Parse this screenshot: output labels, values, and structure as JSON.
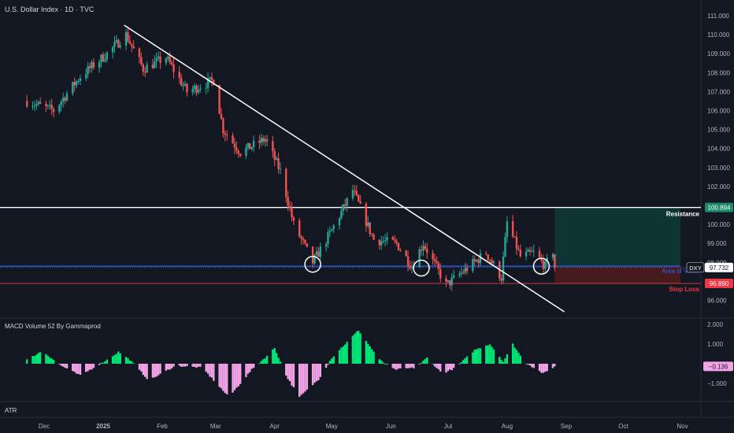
{
  "header": {
    "title": "U.S. Dollar Index · 1D · TVC"
  },
  "macd_panel": {
    "title": "MACD Volume 52 By Gammaprod"
  },
  "atr_panel": {
    "title": "ATR"
  },
  "colors": {
    "background": "#131722",
    "bull": "#26a69a",
    "bear": "#ef5350",
    "hist_up": "#00e676",
    "hist_down": "#f2a2e6",
    "area_of_value": "#2962ff",
    "stop_loss": "#f23645",
    "resistance": "#ffffff",
    "target_zone": "#0e3b34",
    "stop_zone": "#4a1a1f"
  },
  "chart_data": [
    {
      "type": "candlestick",
      "title": "U.S. Dollar Index · 1D · TVC",
      "x_tick_labels": [
        "Dec",
        "2025",
        "Feb",
        "Mar",
        "Apr",
        "May",
        "Jun",
        "Jul",
        "Aug",
        "Sep",
        "Oct",
        "Nov"
      ],
      "y_ticks": [
        "111.000",
        "110.000",
        "109.000",
        "108.000",
        "107.000",
        "106.000",
        "105.000",
        "104.000",
        "103.000",
        "102.000",
        "101.000",
        "100.000",
        "99.000",
        "98.000",
        "97.000",
        "96.000"
      ],
      "ylim": [
        95.2,
        111.3
      ],
      "grid": false,
      "anchor_points": [
        {
          "date": "2024-11-22",
          "value": 106.5
        },
        {
          "date": "2024-12-06",
          "value": 106.0
        },
        {
          "date": "2024-12-20",
          "value": 107.8
        },
        {
          "date": "2025-01-03",
          "value": 109.0
        },
        {
          "date": "2025-01-13",
          "value": 110.0
        },
        {
          "date": "2025-01-22",
          "value": 108.2
        },
        {
          "date": "2025-02-03",
          "value": 108.8
        },
        {
          "date": "2025-02-14",
          "value": 107.0
        },
        {
          "date": "2025-02-28",
          "value": 107.6
        },
        {
          "date": "2025-03-05",
          "value": 105.0
        },
        {
          "date": "2025-03-14",
          "value": 103.8
        },
        {
          "date": "2025-03-27",
          "value": 104.5
        },
        {
          "date": "2025-04-04",
          "value": 102.8
        },
        {
          "date": "2025-04-11",
          "value": 100.0
        },
        {
          "date": "2025-04-21",
          "value": 98.0
        },
        {
          "date": "2025-04-30",
          "value": 99.5
        },
        {
          "date": "2025-05-12",
          "value": 101.8
        },
        {
          "date": "2025-05-23",
          "value": 99.2
        },
        {
          "date": "2025-06-04",
          "value": 99.0
        },
        {
          "date": "2025-06-12",
          "value": 97.8
        },
        {
          "date": "2025-06-18",
          "value": 99.0
        },
        {
          "date": "2025-06-30",
          "value": 96.8
        },
        {
          "date": "2025-07-10",
          "value": 97.6
        },
        {
          "date": "2025-07-21",
          "value": 98.5
        },
        {
          "date": "2025-07-29",
          "value": 97.2
        },
        {
          "date": "2025-08-01",
          "value": 100.1
        },
        {
          "date": "2025-08-08",
          "value": 98.3
        },
        {
          "date": "2025-08-15",
          "value": 98.5
        },
        {
          "date": "2025-08-21",
          "value": 97.8
        },
        {
          "date": "2025-08-25",
          "value": 98.6
        },
        {
          "date": "2025-08-26",
          "value": 97.73
        }
      ],
      "price_levels": [
        {
          "name": "Resistance",
          "value": 100.894,
          "label": "100.894"
        },
        {
          "name": "Area of Value",
          "value": 97.8,
          "label": ""
        },
        {
          "name": "Stop Loss",
          "value": 96.89,
          "label": "96.890"
        }
      ],
      "current_price": {
        "symbol": "DXY",
        "value": 97.732,
        "label": "97.732"
      },
      "trendline": {
        "start": {
          "date": "2025-01-12",
          "value": 110.5
        },
        "end": {
          "date": "2025-08-31",
          "value": 95.4
        }
      },
      "touch_circles": [
        {
          "date": "2025-04-21",
          "value": 97.9
        },
        {
          "date": "2025-06-17",
          "value": 97.7
        },
        {
          "date": "2025-08-19",
          "value": 97.8
        }
      ],
      "position_box": {
        "start_date": "2025-08-26",
        "end_date": "2025-10-31",
        "target": 100.894,
        "entry": 97.8,
        "stop": 96.89
      }
    },
    {
      "type": "bar",
      "title": "MACD Volume 52 By Gammaprod",
      "y_ticks": [
        "2.000",
        "1.000",
        "−1.000"
      ],
      "ylim": [
        -2.1,
        2.1
      ],
      "current_value": -0.136,
      "current_label": "−0.136",
      "hist_anchors": [
        {
          "date": "2024-11-22",
          "value": 0.2
        },
        {
          "date": "2024-11-30",
          "value": 0.65
        },
        {
          "date": "2024-12-10",
          "value": -0.1
        },
        {
          "date": "2024-12-20",
          "value": -0.6
        },
        {
          "date": "2025-01-03",
          "value": 0.2
        },
        {
          "date": "2025-01-09",
          "value": 0.6
        },
        {
          "date": "2025-01-15",
          "value": 0.2
        },
        {
          "date": "2025-01-25",
          "value": -0.85
        },
        {
          "date": "2025-02-08",
          "value": -0.1
        },
        {
          "date": "2025-02-22",
          "value": -0.2
        },
        {
          "date": "2025-03-08",
          "value": -1.7
        },
        {
          "date": "2025-03-20",
          "value": -0.3
        },
        {
          "date": "2025-03-28",
          "value": 0.4
        },
        {
          "date": "2025-04-01",
          "value": 0.8
        },
        {
          "date": "2025-04-07",
          "value": -0.6
        },
        {
          "date": "2025-04-14",
          "value": -1.7
        },
        {
          "date": "2025-04-24",
          "value": -0.8
        },
        {
          "date": "2025-05-01",
          "value": 0.3
        },
        {
          "date": "2025-05-15",
          "value": 1.7
        },
        {
          "date": "2025-05-26",
          "value": 0.2
        },
        {
          "date": "2025-06-03",
          "value": -0.3
        },
        {
          "date": "2025-06-14",
          "value": -0.2
        },
        {
          "date": "2025-06-20",
          "value": 0.3
        },
        {
          "date": "2025-06-28",
          "value": -0.5
        },
        {
          "date": "2025-07-05",
          "value": -0.2
        },
        {
          "date": "2025-07-15",
          "value": 0.7
        },
        {
          "date": "2025-07-23",
          "value": 1.0
        },
        {
          "date": "2025-07-30",
          "value": 0.1
        },
        {
          "date": "2025-08-04",
          "value": 1.0
        },
        {
          "date": "2025-08-10",
          "value": 0.1
        },
        {
          "date": "2025-08-20",
          "value": -0.5
        },
        {
          "date": "2025-08-26",
          "value": -0.136
        }
      ]
    }
  ]
}
